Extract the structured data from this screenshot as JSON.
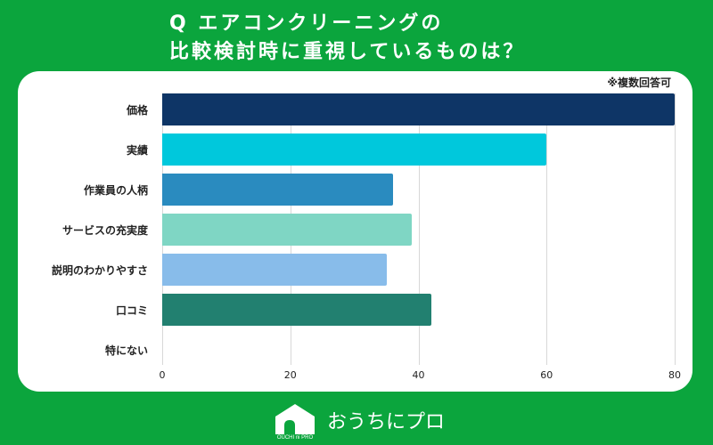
{
  "title": {
    "line1": "Q エアコンクリーニングの",
    "line2": "比較検討時に重視しているものは？"
  },
  "note": "※複数回答可",
  "logo": {
    "text": "おうちにプロ",
    "sub": "OUCHI ni PRO"
  },
  "chart_data": {
    "type": "bar",
    "orientation": "horizontal",
    "title": "Q エアコンクリーニングの比較検討時に重視しているものは？",
    "annotation": "※複数回答可",
    "categories": [
      "価格",
      "実績",
      "作業員の人柄",
      "サービスの充実度",
      "説明のわかりやすさ",
      "口コミ",
      "特にない"
    ],
    "values": [
      80,
      60,
      36,
      39,
      35,
      42,
      0
    ],
    "colors": [
      "#0e3566",
      "#00c8dc",
      "#2a8bbf",
      "#7fd6c4",
      "#88bcea",
      "#228070",
      "#cccccc"
    ],
    "xlim": [
      0,
      80
    ],
    "xticks": [
      "0",
      "20",
      "40",
      "60",
      "80"
    ],
    "grid": true,
    "xlabel": "",
    "ylabel": ""
  }
}
